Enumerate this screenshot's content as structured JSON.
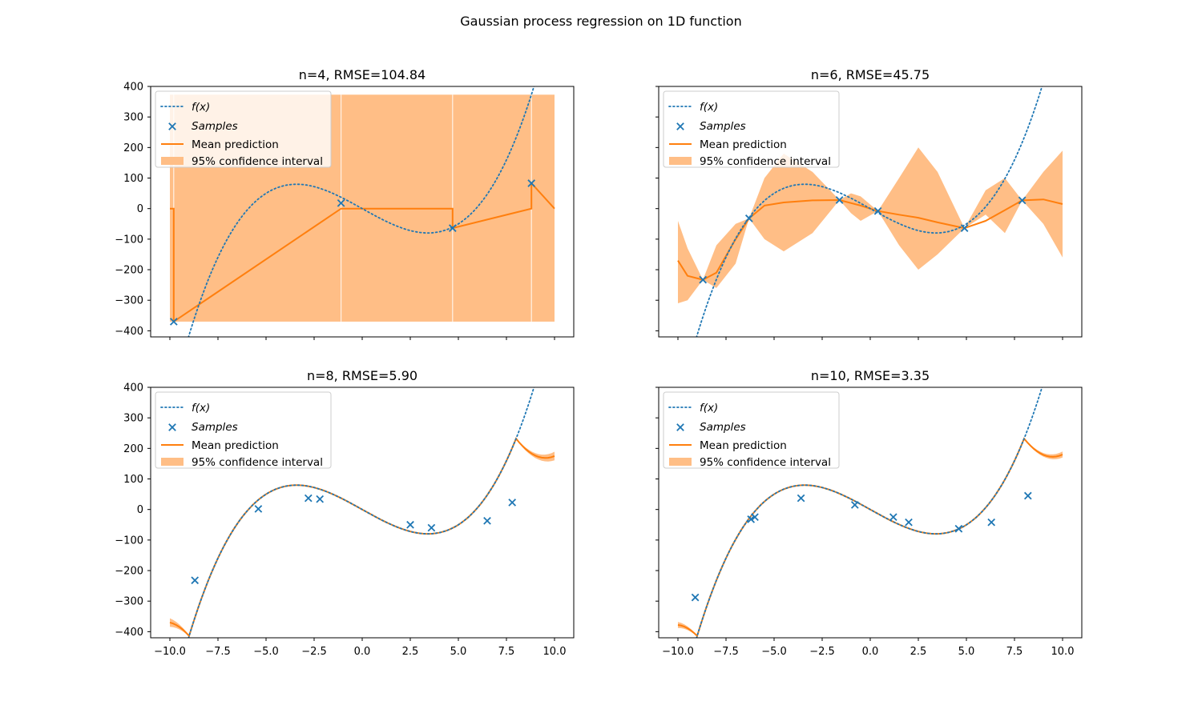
{
  "figure": {
    "title": "Gaussian process regression on 1D function"
  },
  "colors": {
    "true_function": "#1f77b4",
    "samples": "#1f77b4",
    "mean": "#ff7f0e",
    "confidence": "#ffbe86"
  },
  "chart_data": [
    {
      "type": "line",
      "title": "n=4, RMSE=104.84",
      "xlim": [
        -10,
        10
      ],
      "ylim": [
        -420,
        400
      ],
      "xticks": [
        -10.0,
        -7.5,
        -5.0,
        -2.5,
        0.0,
        2.5,
        5.0,
        7.5,
        10.0
      ],
      "yticks": [
        -400,
        -300,
        -200,
        -100,
        0,
        100,
        200,
        300,
        400
      ],
      "show_xticklabels": false,
      "show_yticklabels": true,
      "legend": {
        "location": "upper left",
        "entries": [
          "$f(x)$",
          "$Samples$",
          "Mean prediction",
          "95% confidence interval"
        ]
      },
      "true_function": "f(x) = x^3 - 35x (approx.)",
      "samples": {
        "x": [
          -9.8,
          -1.1,
          4.7,
          8.8
        ],
        "y": [
          -370,
          18,
          -64,
          83
        ]
      },
      "mean_prediction": {
        "x": [
          -10,
          -9.8,
          -9.8,
          -1.1,
          4.7,
          4.7,
          8.8,
          8.8,
          10
        ],
        "y": [
          0,
          0,
          -370,
          0,
          0,
          -64,
          0,
          83,
          0
        ]
      },
      "confidence_interval": {
        "lower": -370,
        "upper": 373
      }
    },
    {
      "type": "line",
      "title": "n=6, RMSE=45.75",
      "xlim": [
        -10,
        10
      ],
      "ylim": [
        -420,
        400
      ],
      "xticks": [
        -10.0,
        -7.5,
        -5.0,
        -2.5,
        0.0,
        2.5,
        5.0,
        7.5,
        10.0
      ],
      "yticks": [
        -400,
        -300,
        -200,
        -100,
        0,
        100,
        200,
        300,
        400
      ],
      "show_xticklabels": false,
      "show_yticklabels": false,
      "legend": {
        "location": "upper left",
        "entries": [
          "$f(x)$",
          "$Samples$",
          "Mean prediction",
          "95% confidence interval"
        ]
      },
      "samples": {
        "x": [
          -8.7,
          -6.3,
          -1.6,
          0.4,
          4.9,
          7.9
        ],
        "y": [
          -233,
          -32,
          28,
          -8,
          -64,
          27
        ]
      },
      "mean_prediction": {
        "x": [
          -10,
          -9.5,
          -8.7,
          -8.0,
          -7.0,
          -6.3,
          -5.5,
          -4.5,
          -3.0,
          -1.6,
          -0.5,
          0.4,
          1.5,
          2.5,
          3.5,
          4.9,
          6.0,
          7.0,
          7.9,
          9.0,
          10
        ],
        "y": [
          -170,
          -220,
          -233,
          -210,
          -100,
          -32,
          10,
          20,
          27,
          28,
          10,
          -8,
          -20,
          -30,
          -45,
          -64,
          -40,
          -5,
          27,
          30,
          15
        ]
      },
      "confidence_interval": {
        "x": [
          -10,
          -9.5,
          -8.7,
          -8.0,
          -7.0,
          -6.3,
          -5.5,
          -4.5,
          -3.0,
          -1.6,
          -1.0,
          -0.5,
          0.4,
          1.5,
          2.5,
          3.5,
          4.9,
          6.0,
          7.0,
          7.9,
          9.0,
          10
        ],
        "lower": [
          -310,
          -300,
          -233,
          -260,
          -180,
          -32,
          -100,
          -140,
          -80,
          28,
          -15,
          -40,
          -8,
          -120,
          -200,
          -150,
          -64,
          -20,
          -80,
          27,
          -50,
          -160
        ],
        "upper": [
          -40,
          -130,
          -233,
          -120,
          -50,
          -32,
          100,
          180,
          120,
          28,
          50,
          40,
          -8,
          100,
          200,
          120,
          -64,
          60,
          100,
          27,
          120,
          190
        ]
      }
    },
    {
      "type": "line",
      "title": "n=8, RMSE=5.90",
      "xlim": [
        -10,
        10
      ],
      "ylim": [
        -420,
        400
      ],
      "xticks": [
        -10.0,
        -7.5,
        -5.0,
        -2.5,
        0.0,
        2.5,
        5.0,
        7.5,
        10.0
      ],
      "yticks": [
        -400,
        -300,
        -200,
        -100,
        0,
        100,
        200,
        300,
        400
      ],
      "show_xticklabels": true,
      "show_yticklabels": true,
      "legend": {
        "location": "upper left",
        "entries": [
          "$f(x)$",
          "$Samples$",
          "Mean prediction",
          "95% confidence interval"
        ]
      },
      "samples": {
        "x": [
          -8.7,
          -5.4,
          -2.8,
          -2.2,
          2.5,
          3.6,
          6.5,
          7.8
        ],
        "y": [
          -232,
          2,
          37,
          34,
          -50,
          -60,
          -37,
          23
        ]
      },
      "confidence_halfwidth_at_edges": 12,
      "mean_right_end": 175,
      "mean_left_end": -370
    },
    {
      "type": "line",
      "title": "n=10, RMSE=3.35",
      "xlim": [
        -10,
        10
      ],
      "ylim": [
        -420,
        400
      ],
      "xticks": [
        -10.0,
        -7.5,
        -5.0,
        -2.5,
        0.0,
        2.5,
        5.0,
        7.5,
        10.0
      ],
      "yticks": [
        -400,
        -300,
        -200,
        -100,
        0,
        100,
        200,
        300,
        400
      ],
      "show_xticklabels": true,
      "show_yticklabels": false,
      "legend": {
        "location": "upper left",
        "entries": [
          "$f(x)$",
          "$Samples$",
          "Mean prediction",
          "95% confidence interval"
        ]
      },
      "samples": {
        "x": [
          -9.1,
          -6.2,
          -6.0,
          -3.6,
          -0.8,
          1.2,
          2.0,
          4.6,
          6.3,
          8.2
        ],
        "y": [
          -288,
          -32,
          -25,
          37,
          15,
          -25,
          -42,
          -63,
          -42,
          45
        ]
      },
      "confidence_halfwidth_at_edges": 8,
      "mean_right_end": 180,
      "mean_left_end": -378
    }
  ]
}
